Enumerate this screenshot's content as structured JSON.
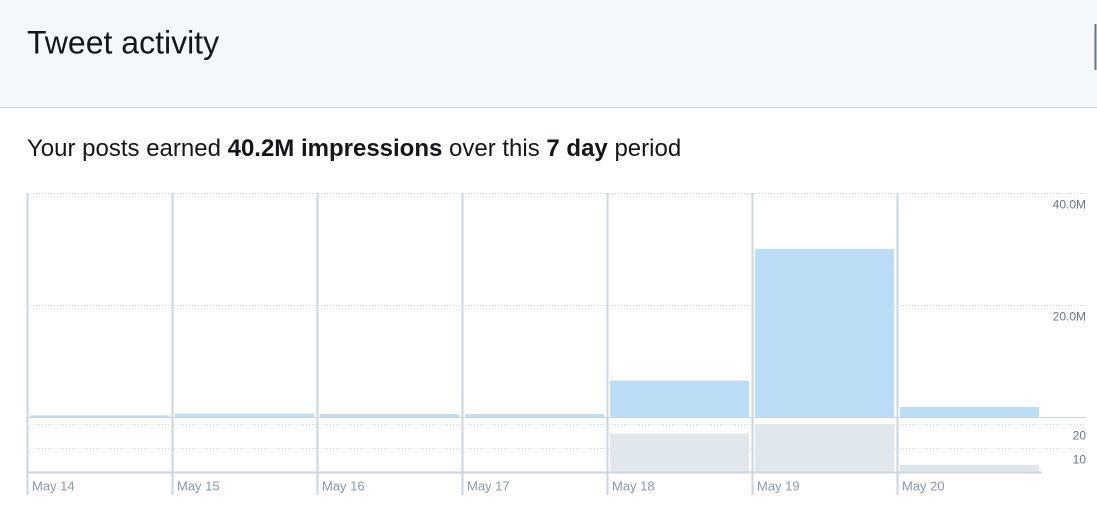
{
  "header": {
    "title": "Tweet activity"
  },
  "summary": {
    "prefix": "Your posts earned",
    "impressions": "40.2M impressions",
    "middle": "over this",
    "period": "7 day",
    "suffix": "period"
  },
  "chart_data": [
    {
      "type": "bar",
      "categories": [
        "May 14",
        "May 15",
        "May 16",
        "May 17",
        "May 18",
        "May 19",
        "May 20"
      ],
      "values": [
        300000,
        600000,
        500000,
        500000,
        6500000,
        30000000,
        1800000
      ],
      "color": "#bbddf5",
      "ylim": [
        0,
        40000000
      ],
      "yticks": [
        {
          "value": 20000000,
          "label": "20.0M"
        },
        {
          "value": 40000000,
          "label": "40.0M"
        }
      ],
      "grid": true
    },
    {
      "type": "bar",
      "values": [
        0,
        0,
        0,
        0,
        16,
        20,
        3
      ],
      "color": "#e1e8ed",
      "ylim": [
        0,
        22.5
      ],
      "yticks": [
        10,
        20
      ],
      "grid": true
    }
  ]
}
